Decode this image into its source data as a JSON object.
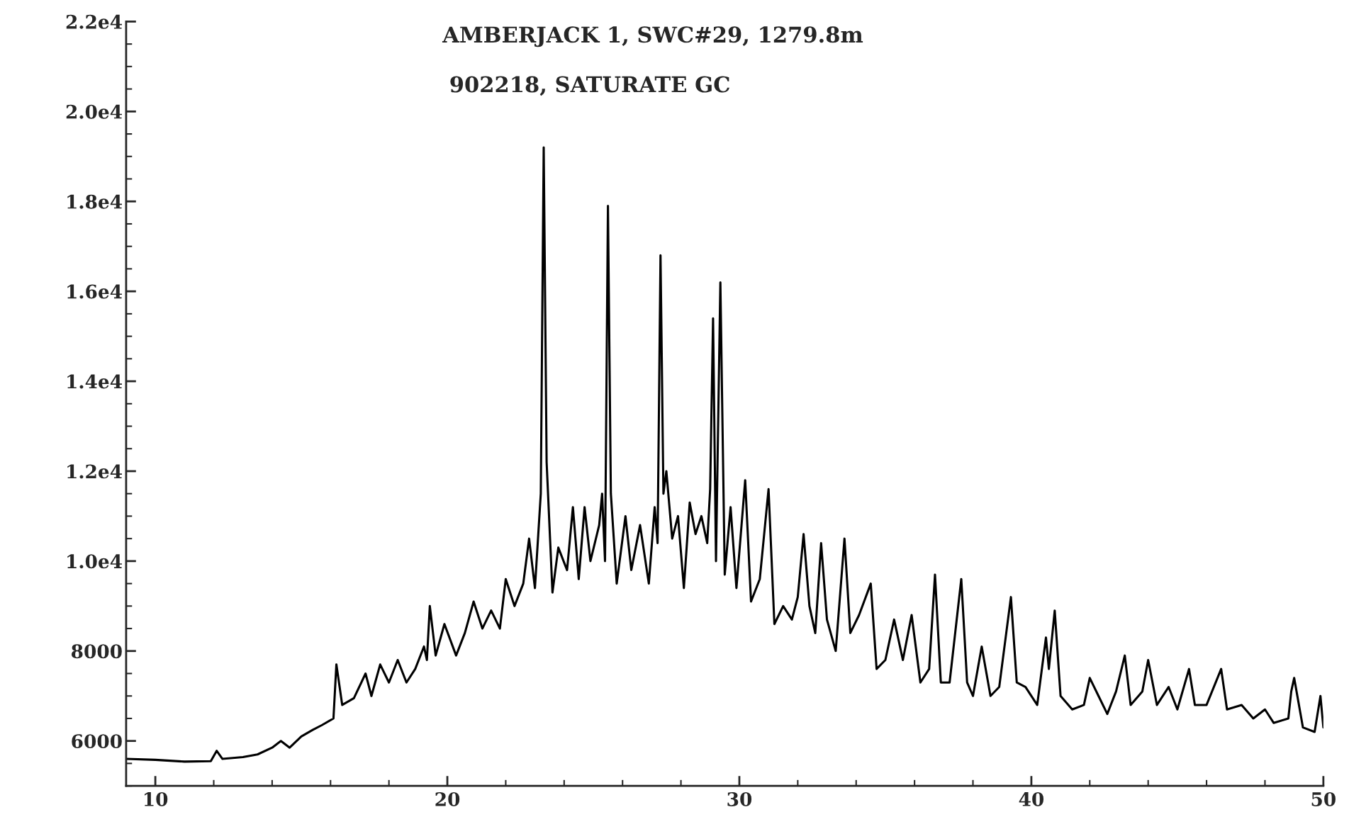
{
  "chart_data": {
    "type": "line",
    "title": "AMBERJACK 1, SWC#29, 1279.8m",
    "subtitle": "902218, SATURATE GC",
    "xlim": [
      9,
      50
    ],
    "xticks": [
      10,
      20,
      30,
      40,
      50
    ],
    "ylim": [
      5000,
      22000
    ],
    "yticks": [
      6000,
      8000,
      {
        "value": 10000,
        "label": "1.0e4"
      },
      {
        "value": 12000,
        "label": "1.2e4"
      },
      {
        "value": 14000,
        "label": "1.4e4"
      },
      {
        "value": 16000,
        "label": "1.6e4"
      },
      {
        "value": 18000,
        "label": "1.8e4"
      },
      {
        "value": 20000,
        "label": "2.0e4"
      },
      {
        "value": 22000,
        "label": "2.2e4"
      }
    ],
    "grid": false,
    "marker": "none",
    "line_style": "solid",
    "series": [
      {
        "color": "#000000",
        "x": [
          9.0,
          10.0,
          11.0,
          11.9,
          12.1,
          12.3,
          13.0,
          13.5,
          14.0,
          14.3,
          14.6,
          15.0,
          15.4,
          15.7,
          16.1,
          16.2,
          16.4,
          16.8,
          17.2,
          17.4,
          17.7,
          18.0,
          18.3,
          18.6,
          18.9,
          19.2,
          19.3,
          19.4,
          19.6,
          19.9,
          20.3,
          20.6,
          20.9,
          21.2,
          21.5,
          21.8,
          22.0,
          22.3,
          22.6,
          22.8,
          23.0,
          23.2,
          23.3,
          23.4,
          23.6,
          23.8,
          24.1,
          24.3,
          24.5,
          24.7,
          24.9,
          25.2,
          25.3,
          25.4,
          25.5,
          25.6,
          25.8,
          26.1,
          26.3,
          26.6,
          26.9,
          27.1,
          27.2,
          27.3,
          27.4,
          27.5,
          27.7,
          27.9,
          28.1,
          28.3,
          28.5,
          28.7,
          28.9,
          29.0,
          29.1,
          29.2,
          29.35,
          29.5,
          29.7,
          29.9,
          30.2,
          30.4,
          30.7,
          31.0,
          31.2,
          31.5,
          31.8,
          32.0,
          32.2,
          32.4,
          32.6,
          32.8,
          33.0,
          33.3,
          33.6,
          33.8,
          34.1,
          34.5,
          34.7,
          35.0,
          35.3,
          35.6,
          35.9,
          36.2,
          36.5,
          36.7,
          36.9,
          37.2,
          37.6,
          37.8,
          38.0,
          38.3,
          38.6,
          38.9,
          39.3,
          39.5,
          39.8,
          40.2,
          40.5,
          40.6,
          40.8,
          41.0,
          41.4,
          41.8,
          42.0,
          42.3,
          42.6,
          42.9,
          43.2,
          43.4,
          43.8,
          44.0,
          44.3,
          44.7,
          45.0,
          45.4,
          45.6,
          46.0,
          46.5,
          46.7,
          47.2,
          47.6,
          48.0,
          48.3,
          48.8,
          48.9,
          49.0,
          49.3,
          49.7,
          49.9,
          50.0
        ],
        "values": [
          5600,
          5580,
          5540,
          5550,
          5780,
          5600,
          5640,
          5700,
          5850,
          6000,
          5850,
          6100,
          6250,
          6350,
          6500,
          7700,
          6800,
          6950,
          7500,
          7000,
          7700,
          7300,
          7800,
          7300,
          7600,
          8100,
          7800,
          9000,
          7900,
          8600,
          7900,
          8400,
          9100,
          8500,
          8900,
          8500,
          9600,
          9000,
          9500,
          10500,
          9400,
          11500,
          19200,
          12200,
          9300,
          10300,
          9800,
          11200,
          9600,
          11200,
          10000,
          10800,
          11500,
          10000,
          17900,
          11500,
          9500,
          11000,
          9800,
          10800,
          9500,
          11200,
          10400,
          16800,
          11500,
          12000,
          10500,
          11000,
          9400,
          11300,
          10600,
          11000,
          10400,
          11600,
          15400,
          10000,
          16200,
          9700,
          11200,
          9400,
          11800,
          9100,
          9600,
          11600,
          8600,
          9000,
          8700,
          9200,
          10600,
          9000,
          8400,
          10400,
          8700,
          8000,
          10500,
          8400,
          8800,
          9500,
          7600,
          7800,
          8700,
          7800,
          8800,
          7300,
          7600,
          9700,
          7300,
          7300,
          9600,
          7300,
          7000,
          8100,
          7000,
          7200,
          9200,
          7300,
          7200,
          6800,
          8300,
          7600,
          8900,
          7000,
          6700,
          6800,
          7400,
          7000,
          6600,
          7100,
          7900,
          6800,
          7100,
          7800,
          6800,
          7200,
          6700,
          7600,
          6800,
          6800,
          7600,
          6700,
          6800,
          6500,
          6700,
          6400,
          6500,
          7100,
          7400,
          6300,
          6200,
          7000,
          6300
        ]
      }
    ]
  }
}
